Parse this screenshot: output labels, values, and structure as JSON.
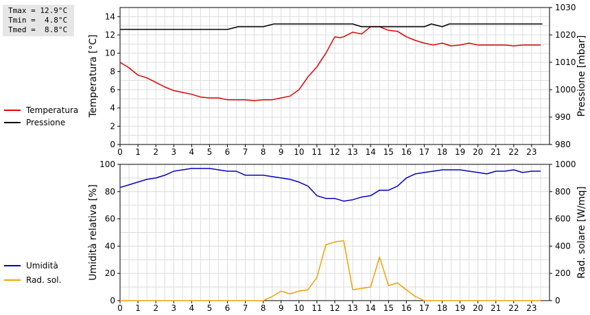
{
  "stats": {
    "lines": [
      "Tmax = 12.9°C",
      "Tmin =  4.8°C",
      "Tmed =  8.8°C"
    ]
  },
  "chart_data": [
    {
      "type": "line",
      "xlim": [
        0,
        24
      ],
      "x_ticks": [
        "0",
        "1",
        "2",
        "3",
        "4",
        "5",
        "6",
        "7",
        "8",
        "9",
        "10",
        "11",
        "12",
        "13",
        "14",
        "15",
        "16",
        "17",
        "18",
        "19",
        "20",
        "21",
        "22",
        "23"
      ],
      "ylabel_left": "Temperatura [°C]",
      "ylabel_right": "Pressione [mbar]",
      "ylim_left": [
        0,
        15
      ],
      "yticks_left": [
        0,
        2,
        4,
        6,
        8,
        10,
        12,
        14
      ],
      "ylim_right": [
        980,
        1030
      ],
      "yticks_right": [
        980,
        990,
        1000,
        1010,
        1020,
        1030
      ],
      "grid": true,
      "legend_position": "left",
      "series": [
        {
          "name": "Temperatura",
          "axis": "left",
          "color": "#e00000",
          "x": [
            0,
            0.5,
            1,
            1.5,
            2,
            2.5,
            3,
            3.5,
            4,
            4.5,
            5,
            5.5,
            6,
            6.5,
            7,
            7.5,
            8,
            8.5,
            9,
            9.5,
            10,
            10.5,
            11,
            11.5,
            12,
            12.3,
            12.5,
            13,
            13.5,
            14,
            14.5,
            15,
            15.5,
            16,
            16.5,
            17,
            17.5,
            18,
            18.5,
            19,
            19.5,
            20,
            20.5,
            21,
            21.5,
            22,
            22.5,
            23,
            23.5
          ],
          "y": [
            9.0,
            8.4,
            7.6,
            7.3,
            6.8,
            6.3,
            5.9,
            5.7,
            5.5,
            5.2,
            5.1,
            5.1,
            4.9,
            4.9,
            4.9,
            4.8,
            4.9,
            4.9,
            5.1,
            5.3,
            6.0,
            7.4,
            8.5,
            10.0,
            11.8,
            11.7,
            11.8,
            12.3,
            12.1,
            12.9,
            12.9,
            12.5,
            12.4,
            11.8,
            11.4,
            11.1,
            10.9,
            11.1,
            10.8,
            10.9,
            11.1,
            10.9,
            10.9,
            10.9,
            10.9,
            10.8,
            10.9,
            10.9,
            10.9
          ]
        },
        {
          "name": "Pressione",
          "axis": "right",
          "color": "#000000",
          "x": [
            0,
            6,
            6.6,
            8,
            8.6,
            13,
            13.5,
            17,
            17.4,
            18,
            18.4,
            23.6
          ],
          "y": [
            1022,
            1022,
            1023,
            1023,
            1024,
            1024,
            1023,
            1023,
            1024,
            1023,
            1024,
            1024
          ]
        }
      ]
    },
    {
      "type": "line",
      "xlim": [
        0,
        24
      ],
      "x_ticks": [
        "0",
        "1",
        "2",
        "3",
        "4",
        "5",
        "6",
        "7",
        "8",
        "9",
        "10",
        "11",
        "12",
        "13",
        "14",
        "15",
        "16",
        "17",
        "18",
        "19",
        "20",
        "21",
        "22",
        "23"
      ],
      "ylabel_left": "Umidità relativa [%]",
      "ylabel_right": "Rad. solare [W/mq]",
      "ylim_left": [
        0,
        100
      ],
      "yticks_left": [
        0,
        20,
        40,
        60,
        80,
        100
      ],
      "ylim_right": [
        0,
        1000
      ],
      "yticks_right": [
        0,
        200,
        400,
        600,
        800,
        1000
      ],
      "grid": true,
      "legend_position": "left",
      "series": [
        {
          "name": "Umidità",
          "axis": "left",
          "color": "#0000c0",
          "x": [
            0,
            0.5,
            1,
            1.5,
            2,
            2.5,
            3,
            3.5,
            4,
            4.5,
            5,
            5.5,
            6,
            6.5,
            7,
            7.5,
            8,
            8.5,
            9,
            9.5,
            10,
            10.5,
            11,
            11.5,
            12,
            12.5,
            13,
            13.5,
            14,
            14.5,
            15,
            15.5,
            16,
            16.5,
            17,
            17.5,
            18,
            18.5,
            19,
            19.5,
            20,
            20.5,
            21,
            21.5,
            22,
            22.5,
            23,
            23.5
          ],
          "y": [
            83,
            85,
            87,
            89,
            90,
            92,
            95,
            96,
            97,
            97,
            97,
            96,
            95,
            95,
            92,
            92,
            92,
            91,
            90,
            89,
            87,
            84,
            77,
            75,
            75,
            73,
            74,
            76,
            77,
            81,
            81,
            84,
            90,
            93,
            94,
            95,
            96,
            96,
            96,
            95,
            94,
            93,
            95,
            95,
            96,
            94,
            95,
            95
          ]
        },
        {
          "name": "Rad. sol.",
          "axis": "right",
          "color": "#f0a000",
          "x": [
            0,
            0.5,
            1,
            1.5,
            2,
            2.5,
            3,
            3.5,
            4,
            4.5,
            5,
            5.5,
            6,
            6.5,
            7,
            7.5,
            8,
            8.5,
            9,
            9.5,
            10,
            10.5,
            11,
            11.5,
            12,
            12.5,
            13,
            13.5,
            14,
            14.5,
            15,
            15.5,
            16,
            16.5,
            17,
            17.5,
            18,
            18.5,
            19,
            19.5,
            20,
            20.5,
            21,
            21.5,
            22,
            22.5,
            23,
            23.5
          ],
          "y": [
            0,
            0,
            0,
            0,
            0,
            0,
            0,
            0,
            0,
            0,
            0,
            0,
            0,
            0,
            0,
            0,
            0,
            30,
            70,
            50,
            70,
            80,
            170,
            410,
            430,
            440,
            80,
            90,
            100,
            320,
            110,
            130,
            80,
            30,
            0,
            0,
            0,
            0,
            0,
            0,
            0,
            0,
            0,
            0,
            0,
            0,
            0,
            0
          ]
        }
      ]
    }
  ]
}
